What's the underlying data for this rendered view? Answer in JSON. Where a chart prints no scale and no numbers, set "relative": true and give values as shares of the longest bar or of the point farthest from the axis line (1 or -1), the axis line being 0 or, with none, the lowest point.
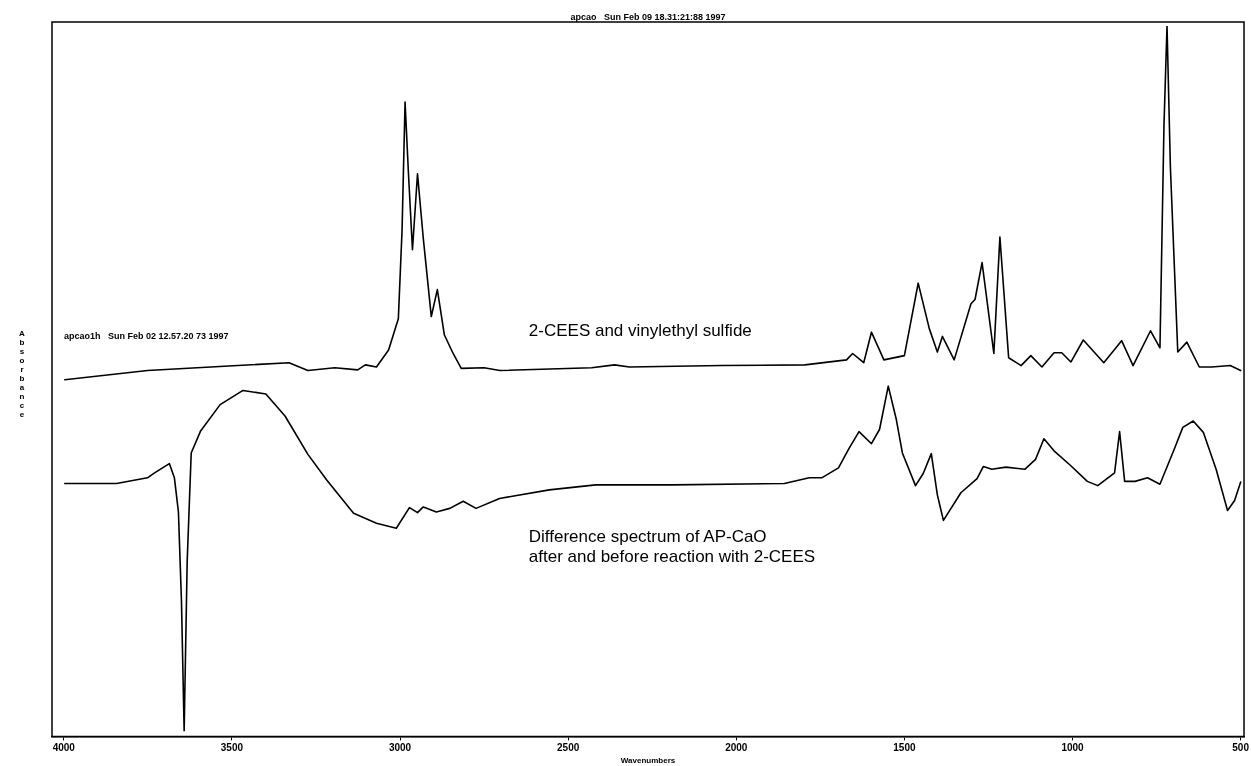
{
  "chart_data": {
    "type": "line",
    "xlabel": "Wavenumbers",
    "ylabel": "Absorbance",
    "relative": true,
    "xlim": [
      4035,
      490
    ],
    "xticks": [
      4000,
      3500,
      3000,
      2500,
      2000,
      1500,
      1000,
      500
    ],
    "annotations": [
      "apcao   Sun Feb 09 18.31:21:88 1997",
      "apcao1h   Sun Feb 02 12.57.20 73 1997"
    ],
    "grid": false,
    "legend": false,
    "marker": "none",
    "line_style": "solid",
    "series": [
      {
        "name": "2-CEES and vinylethyl sulfide",
        "color": "#000000",
        "x": [
          3997,
          3751,
          3330,
          3274,
          3194,
          3126,
          3103,
          3070,
          3034,
          3005,
          2994,
          2985,
          2975,
          2963,
          2948,
          2931,
          2907,
          2889,
          2868,
          2842,
          2818,
          2750,
          2703,
          2430,
          2362,
          2318,
          2042,
          1796,
          1672,
          1654,
          1621,
          1598,
          1561,
          1500,
          1459,
          1426,
          1402,
          1387,
          1352,
          1302,
          1290,
          1269,
          1234,
          1216,
          1190,
          1153,
          1124,
          1091,
          1055,
          1032,
          1005,
          968,
          907,
          854,
          820,
          768,
          740,
          728,
          719,
          709,
          687,
          660,
          623,
          586,
          531,
          500
        ],
        "values": [
          0.502,
          0.515,
          0.526,
          0.515,
          0.519,
          0.516,
          0.523,
          0.52,
          0.544,
          0.588,
          0.712,
          0.893,
          0.793,
          0.685,
          0.792,
          0.702,
          0.591,
          0.629,
          0.565,
          0.539,
          0.518,
          0.519,
          0.515,
          0.519,
          0.523,
          0.52,
          0.522,
          0.523,
          0.53,
          0.539,
          0.526,
          0.569,
          0.53,
          0.536,
          0.638,
          0.574,
          0.541,
          0.563,
          0.53,
          0.609,
          0.615,
          0.667,
          0.539,
          0.703,
          0.533,
          0.522,
          0.536,
          0.52,
          0.54,
          0.54,
          0.527,
          0.558,
          0.526,
          0.557,
          0.522,
          0.571,
          0.547,
          0.861,
          1.0,
          0.802,
          0.541,
          0.555,
          0.52,
          0.52,
          0.522,
          0.515
        ]
      },
      {
        "name": "Difference spectrum of AP-CaO\nafter and before reaction with 2-CEES",
        "color": "#000000",
        "x": [
          3997,
          3843,
          3751,
          3730,
          3686,
          3671,
          3659,
          3650,
          3642,
          3633,
          3621,
          3593,
          3535,
          3467,
          3399,
          3342,
          3274,
          3218,
          3138,
          3070,
          3011,
          2972,
          2948,
          2931,
          2892,
          2852,
          2812,
          2774,
          2704,
          2556,
          2418,
          2285,
          2190,
          1857,
          1783,
          1746,
          1696,
          1665,
          1635,
          1598,
          1574,
          1548,
          1524,
          1506,
          1467,
          1444,
          1420,
          1402,
          1384,
          1332,
          1284,
          1265,
          1240,
          1198,
          1142,
          1110,
          1085,
          1055,
          1005,
          956,
          925,
          875,
          860,
          845,
          814,
          777,
          740,
          697,
          672,
          641,
          611,
          573,
          539,
          518,
          500
        ],
        "values": [
          0.356,
          0.356,
          0.364,
          0.371,
          0.384,
          0.364,
          0.316,
          0.191,
          0.008,
          0.246,
          0.399,
          0.43,
          0.467,
          0.487,
          0.482,
          0.451,
          0.397,
          0.361,
          0.314,
          0.3,
          0.293,
          0.322,
          0.315,
          0.323,
          0.316,
          0.321,
          0.331,
          0.321,
          0.335,
          0.347,
          0.354,
          0.354,
          0.354,
          0.356,
          0.364,
          0.364,
          0.378,
          0.405,
          0.429,
          0.412,
          0.432,
          0.493,
          0.446,
          0.399,
          0.353,
          0.37,
          0.398,
          0.34,
          0.304,
          0.343,
          0.363,
          0.38,
          0.376,
          0.379,
          0.376,
          0.39,
          0.419,
          0.402,
          0.381,
          0.359,
          0.353,
          0.371,
          0.429,
          0.359,
          0.359,
          0.364,
          0.355,
          0.405,
          0.435,
          0.444,
          0.428,
          0.376,
          0.318,
          0.332,
          0.358
        ]
      }
    ]
  }
}
